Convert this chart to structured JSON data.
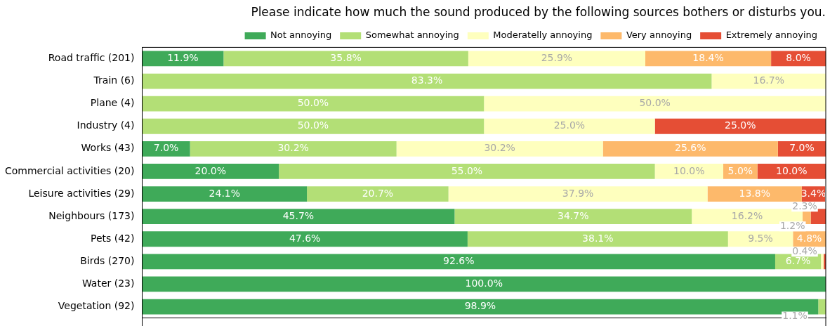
{
  "chart_data": {
    "type": "bar",
    "orientation": "horizontal",
    "stacked": true,
    "title": "Please indicate how much the sound produced by the following sources bothers or disturbs you.",
    "categories": [
      "Road traffic (201)",
      "Train (6)",
      "Plane (4)",
      "Industry (4)",
      "Works (43)",
      "Commercial activities (20)",
      "Leisure activities (29)",
      "Neighbours (173)",
      "Pets (42)",
      "Birds (270)",
      "Water (23)",
      "Vegetation (92)"
    ],
    "series": [
      {
        "name": "Not annoying",
        "color": "#3faa59",
        "values": [
          11.9,
          0,
          0,
          0,
          7.0,
          20.0,
          24.1,
          45.7,
          47.6,
          92.6,
          100.0,
          98.9
        ],
        "value_labels": [
          "11.9%",
          null,
          null,
          null,
          "7.0%",
          "20.0%",
          "24.1%",
          "45.7%",
          "47.6%",
          "92.6%",
          "100.0%",
          "98.9%"
        ]
      },
      {
        "name": "Somewhat annoying",
        "color": "#b3df76",
        "values": [
          35.8,
          83.3,
          50.0,
          50.0,
          30.2,
          55.0,
          20.7,
          34.7,
          38.1,
          6.7,
          0,
          1.1
        ],
        "value_labels": [
          "35.8%",
          "83.3%",
          "50.0%",
          "50.0%",
          "30.2%",
          "55.0%",
          "20.7%",
          "34.7%",
          "38.1%",
          "6.7%",
          null,
          "1.1%"
        ]
      },
      {
        "name": "Moderatelly annoying",
        "color": "#feffbe",
        "values": [
          25.9,
          16.7,
          50.0,
          25.0,
          30.2,
          10.0,
          37.9,
          16.2,
          9.5,
          0.4,
          0,
          0
        ],
        "value_labels": [
          "25.9%",
          "16.7%",
          "50.0%",
          "25.0%",
          "30.2%",
          "10.0%",
          "37.9%",
          "16.2%",
          "9.5%",
          "0.4%",
          null,
          null
        ]
      },
      {
        "name": "Very annoying",
        "color": "#fdb96b",
        "values": [
          18.4,
          0,
          0,
          0,
          25.6,
          5.0,
          13.8,
          1.2,
          4.8,
          0,
          0,
          0
        ],
        "value_labels": [
          "18.4%",
          null,
          null,
          null,
          "25.6%",
          "5.0%",
          "13.8%",
          "1.2%",
          "4.8%",
          null,
          null,
          null
        ]
      },
      {
        "name": "Extremely annoying",
        "color": "#e54e35",
        "values": [
          8.0,
          0,
          0,
          25.0,
          7.0,
          10.0,
          3.4,
          2.3,
          0,
          0.4,
          0,
          0
        ],
        "value_labels": [
          "8.0%",
          null,
          null,
          "25.0%",
          "7.0%",
          "10.0%",
          "3.4%",
          "2.3%",
          null,
          null,
          null,
          null
        ]
      }
    ],
    "xlim": [
      0,
      100
    ],
    "tick_labels": "y",
    "grid": false,
    "legend": "top"
  }
}
